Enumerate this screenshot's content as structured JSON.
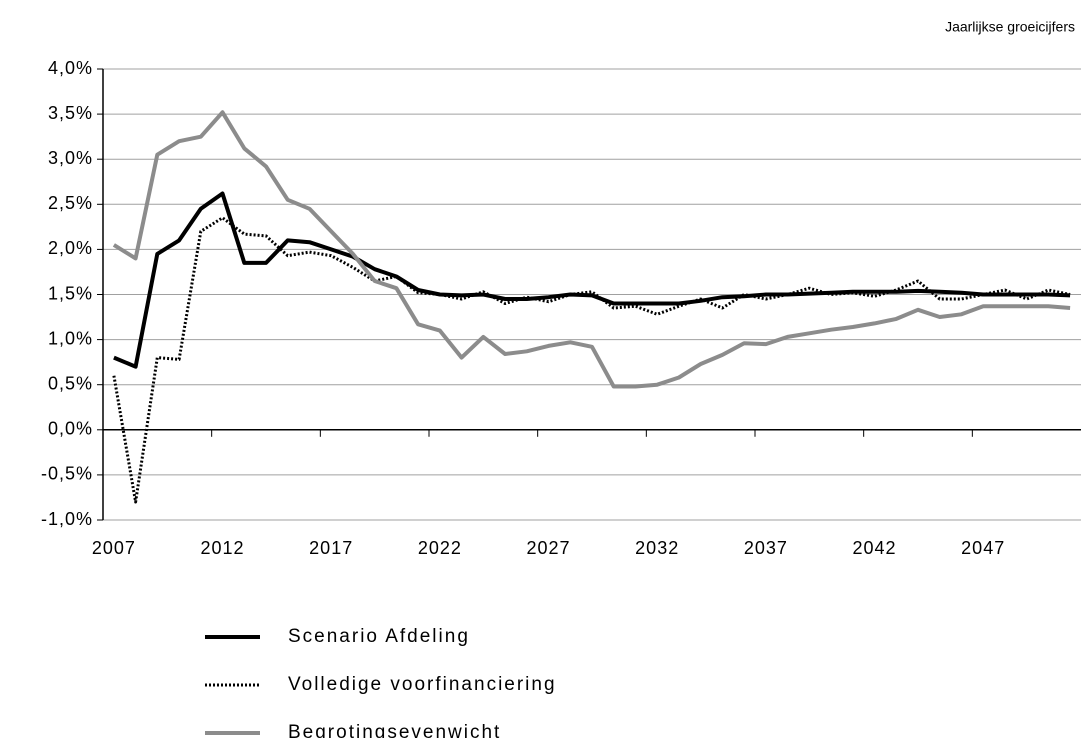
{
  "chart_data": {
    "type": "line",
    "subtitle": "Jaarlijkse groeicijfers",
    "categories": [
      "2007",
      null,
      null,
      null,
      null,
      "2012",
      null,
      null,
      null,
      null,
      "2017",
      null,
      null,
      null,
      null,
      "2022",
      null,
      null,
      null,
      null,
      "2027",
      null,
      null,
      null,
      null,
      "2032",
      null,
      null,
      null,
      null,
      "2037",
      null,
      null,
      null,
      null,
      "2042",
      null,
      null,
      null,
      null,
      "2047",
      null,
      null,
      null,
      null
    ],
    "ylim": [
      -1,
      4
    ],
    "yticks": [
      {
        "value": -1,
        "label": "-1,0%"
      },
      {
        "value": -0.5,
        "label": "-0,5%"
      },
      {
        "value": 0,
        "label": "0,0%"
      },
      {
        "value": 0.5,
        "label": "0,5%"
      },
      {
        "value": 1,
        "label": "1,0%"
      },
      {
        "value": 1.5,
        "label": "1,5%"
      },
      {
        "value": 2,
        "label": "2,0%"
      },
      {
        "value": 2.5,
        "label": "2,5%"
      },
      {
        "value": 3,
        "label": "3,0%"
      },
      {
        "value": 3.5,
        "label": "3,5%"
      },
      {
        "value": 4,
        "label": "4,0%"
      }
    ],
    "grid": true,
    "series": [
      {
        "name": "Scenario Afdeling",
        "color": "#000000",
        "style": "solid",
        "values": [
          0.8,
          0.7,
          1.95,
          2.1,
          2.45,
          2.62,
          1.85,
          1.85,
          2.1,
          2.08,
          2.0,
          1.92,
          1.78,
          1.7,
          1.55,
          1.5,
          1.49,
          1.5,
          1.45,
          1.45,
          1.47,
          1.5,
          1.49,
          1.4,
          1.4,
          1.4,
          1.4,
          1.43,
          1.47,
          1.48,
          1.5,
          1.5,
          1.51,
          1.52,
          1.53,
          1.53,
          1.53,
          1.54,
          1.53,
          1.52,
          1.5,
          1.5,
          1.5,
          1.5,
          1.49
        ]
      },
      {
        "name": "Volledige voorfinanciering",
        "color": "#000000",
        "style": "dotted",
        "values": [
          0.6,
          -0.8,
          0.8,
          0.78,
          2.2,
          2.35,
          2.17,
          2.15,
          1.93,
          1.97,
          1.93,
          1.8,
          1.65,
          1.7,
          1.52,
          1.5,
          1.45,
          1.53,
          1.4,
          1.47,
          1.42,
          1.5,
          1.53,
          1.35,
          1.37,
          1.28,
          1.37,
          1.45,
          1.35,
          1.5,
          1.45,
          1.5,
          1.57,
          1.5,
          1.52,
          1.48,
          1.55,
          1.65,
          1.45,
          1.45,
          1.5,
          1.55,
          1.45,
          1.55,
          1.5
        ]
      },
      {
        "name": "Begrotingsevenwicht",
        "color": "#8c8c8c",
        "style": "solid",
        "values": [
          2.05,
          1.9,
          3.05,
          3.2,
          3.25,
          3.52,
          3.12,
          2.92,
          2.55,
          2.45,
          2.2,
          1.95,
          1.65,
          1.57,
          1.17,
          1.1,
          0.8,
          1.03,
          0.84,
          0.87,
          0.93,
          0.97,
          0.92,
          0.48,
          0.48,
          0.5,
          0.58,
          0.73,
          0.83,
          0.96,
          0.95,
          1.03,
          1.07,
          1.11,
          1.14,
          1.18,
          1.23,
          1.33,
          1.25,
          1.28,
          1.37,
          1.37,
          1.37,
          1.37,
          1.35
        ]
      }
    ]
  }
}
